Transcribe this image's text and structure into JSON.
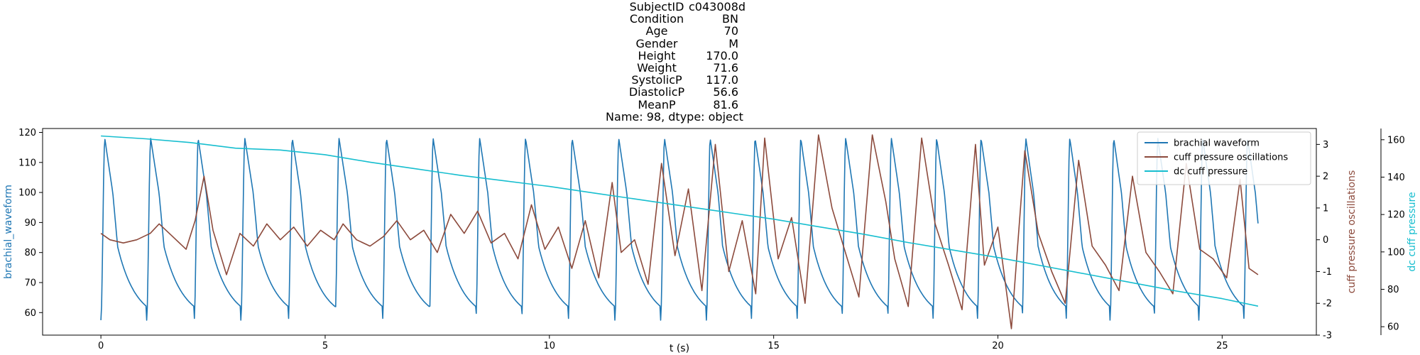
{
  "title": {
    "rows": [
      {
        "label": "SubjectID",
        "value": "c043008d"
      },
      {
        "label": "Condition",
        "value": "BN"
      },
      {
        "label": "Age",
        "value": "70"
      },
      {
        "label": "Gender",
        "value": "M"
      },
      {
        "label": "Height",
        "value": "170.0"
      },
      {
        "label": "Weight",
        "value": "71.6"
      },
      {
        "label": "SystolicP",
        "value": "117.0"
      },
      {
        "label": "DiastolicP",
        "value": "56.6"
      },
      {
        "label": "MeanP",
        "value": "81.6"
      }
    ],
    "footer": "Name: 98, dtype: object"
  },
  "chart_data": {
    "type": "line",
    "xlabel": "t (s)",
    "xlim": [
      -1.3,
      27.1
    ],
    "xticks": [
      0,
      5,
      10,
      15,
      20,
      25
    ],
    "duration": 25.8,
    "grid": false,
    "legend_position": "upper right",
    "axes": [
      {
        "id": "left",
        "label": "brachial_waveform",
        "color": "#1f77b4",
        "ylim": [
          52.5,
          121.3
        ],
        "ticks": [
          60,
          70,
          80,
          90,
          100,
          110,
          120
        ]
      },
      {
        "id": "right1",
        "label": "cuff pressure oscillations",
        "color": "#8c4a3c",
        "ylim": [
          -3.0,
          3.5
        ],
        "ticks": [
          -3,
          -2,
          -1,
          0,
          1,
          2,
          3
        ]
      },
      {
        "id": "right2",
        "label": "dc cuff pressure",
        "color": "#17becf",
        "ylim": [
          55.5,
          166.0
        ],
        "ticks": [
          60,
          80,
          100,
          120,
          140,
          160
        ]
      }
    ],
    "series": [
      {
        "name": "brachial waveform",
        "axis": "left",
        "color": "#1f77b4",
        "beat_onsets": [
          0.0,
          1.02,
          2.08,
          3.12,
          4.18,
          5.22,
          6.28,
          7.32,
          8.36,
          9.38,
          10.42,
          11.46,
          12.48,
          13.5,
          14.5,
          15.52,
          16.52,
          17.54,
          18.55,
          19.54,
          20.54,
          21.52,
          22.5,
          23.48,
          24.48,
          25.48
        ],
        "peak": 118.0,
        "trough": 57.5,
        "start_value": 57.0,
        "end_value": 58.0,
        "note": "periodic arterial pressure pulses between about 57 and 118"
      },
      {
        "name": "cuff pressure oscillations",
        "axis": "right1",
        "color": "#8c4a3c",
        "x": [
          0.0,
          0.2,
          0.5,
          0.8,
          1.1,
          1.3,
          1.6,
          1.9,
          2.1,
          2.3,
          2.5,
          2.8,
          3.1,
          3.4,
          3.7,
          4.0,
          4.3,
          4.6,
          4.9,
          5.2,
          5.4,
          5.7,
          6.0,
          6.3,
          6.6,
          6.9,
          7.2,
          7.5,
          7.8,
          8.1,
          8.4,
          8.7,
          9.0,
          9.3,
          9.6,
          9.9,
          10.2,
          10.5,
          10.8,
          11.1,
          11.4,
          11.6,
          11.9,
          12.2,
          12.5,
          12.8,
          13.1,
          13.4,
          13.7,
          14.0,
          14.3,
          14.6,
          14.8,
          15.1,
          15.4,
          15.7,
          16.0,
          16.3,
          16.6,
          16.9,
          17.2,
          17.5,
          17.7,
          18.0,
          18.3,
          18.6,
          18.9,
          19.2,
          19.5,
          19.7,
          20.0,
          20.3,
          20.6,
          20.9,
          21.2,
          21.5,
          21.8,
          22.1,
          22.4,
          22.7,
          23.0,
          23.3,
          23.6,
          23.9,
          24.2,
          24.5,
          24.8,
          25.1,
          25.4,
          25.6,
          25.8
        ],
        "y": [
          0.2,
          0.0,
          -0.1,
          0.0,
          0.2,
          0.5,
          0.1,
          -0.3,
          0.6,
          2.0,
          0.3,
          -1.1,
          0.2,
          -0.2,
          0.5,
          0.0,
          0.4,
          -0.2,
          0.3,
          0.0,
          0.5,
          0.0,
          -0.2,
          0.1,
          0.6,
          0.0,
          0.3,
          -0.4,
          0.8,
          0.2,
          0.9,
          -0.1,
          0.2,
          -0.6,
          1.1,
          -0.3,
          0.4,
          -0.9,
          0.6,
          -1.2,
          1.8,
          -0.4,
          0.0,
          -1.4,
          2.4,
          -0.5,
          1.6,
          -1.6,
          3.0,
          -1.0,
          0.6,
          -1.7,
          3.2,
          -0.6,
          0.7,
          -2.0,
          3.3,
          1.0,
          -0.4,
          -1.8,
          3.3,
          1.2,
          -0.6,
          -2.1,
          3.2,
          0.5,
          -0.8,
          -2.2,
          3.0,
          -0.8,
          0.4,
          -2.8,
          2.8,
          0.2,
          -1.0,
          -2.0,
          2.5,
          -0.2,
          -0.8,
          -1.6,
          2.0,
          -0.4,
          -1.0,
          -1.7,
          2.4,
          -0.3,
          -0.6,
          -1.2,
          1.9,
          -0.9,
          -1.1
        ]
      },
      {
        "name": "dc cuff pressure",
        "axis": "right2",
        "color": "#17becf",
        "x": [
          0.0,
          1.0,
          2.0,
          3.0,
          4.0,
          5.0,
          6.0,
          7.0,
          8.0,
          9.0,
          10.0,
          11.0,
          12.0,
          13.0,
          14.0,
          15.0,
          16.0,
          17.0,
          18.0,
          19.0,
          20.0,
          21.0,
          22.0,
          23.0,
          24.0,
          25.0,
          25.8
        ],
        "y": [
          162,
          160.5,
          158.5,
          155.5,
          154.5,
          152,
          148,
          144.5,
          141,
          138,
          135,
          131.5,
          128,
          124.5,
          121,
          117.5,
          113.5,
          109.5,
          105,
          101,
          97,
          92.5,
          88,
          83.5,
          79,
          75,
          71
        ]
      }
    ]
  }
}
